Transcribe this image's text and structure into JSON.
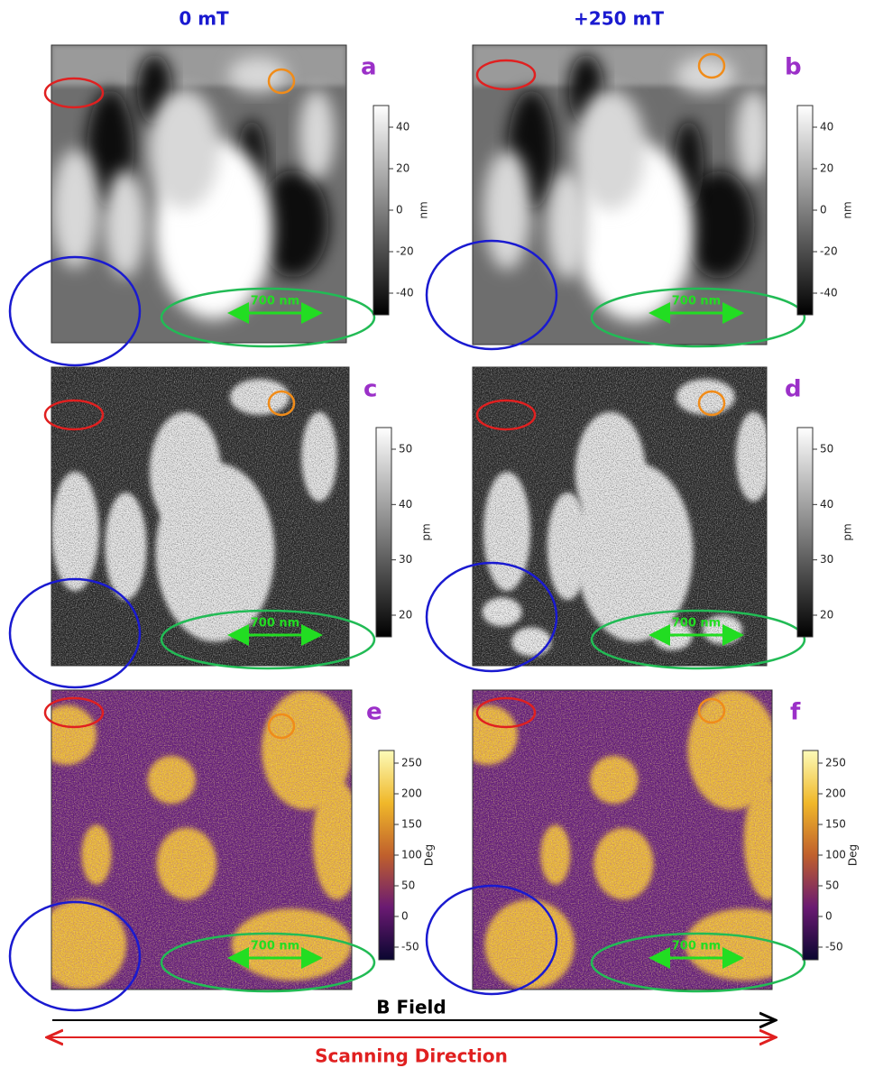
{
  "headers": [
    "0 mT",
    "+250 mT"
  ],
  "panels": [
    {
      "label": "a",
      "scale_bar": "700 nm",
      "colorbar": {
        "unit": "nm",
        "ticks": [
          40,
          20,
          0,
          -20,
          -40
        ]
      }
    },
    {
      "label": "b",
      "scale_bar": "700 nm",
      "colorbar": {
        "unit": "nm",
        "ticks": [
          40,
          20,
          0,
          -20,
          -40
        ]
      }
    },
    {
      "label": "c",
      "scale_bar": "700 nm",
      "colorbar": {
        "unit": "pm",
        "ticks": [
          50,
          40,
          30,
          20
        ]
      }
    },
    {
      "label": "d",
      "scale_bar": "700 nm",
      "colorbar": {
        "unit": "pm",
        "ticks": [
          50,
          40,
          30,
          20
        ]
      }
    },
    {
      "label": "e",
      "scale_bar": "700 nm",
      "colorbar": {
        "unit": "Deg",
        "ticks": [
          250,
          200,
          150,
          100,
          50,
          0,
          -50
        ]
      }
    },
    {
      "label": "f",
      "scale_bar": "700 nm",
      "colorbar": {
        "unit": "Deg",
        "ticks": [
          250,
          200,
          150,
          100,
          50,
          0,
          -50
        ]
      }
    }
  ],
  "b_field": "B Field",
  "scanning_direction": "Scanning Direction"
}
